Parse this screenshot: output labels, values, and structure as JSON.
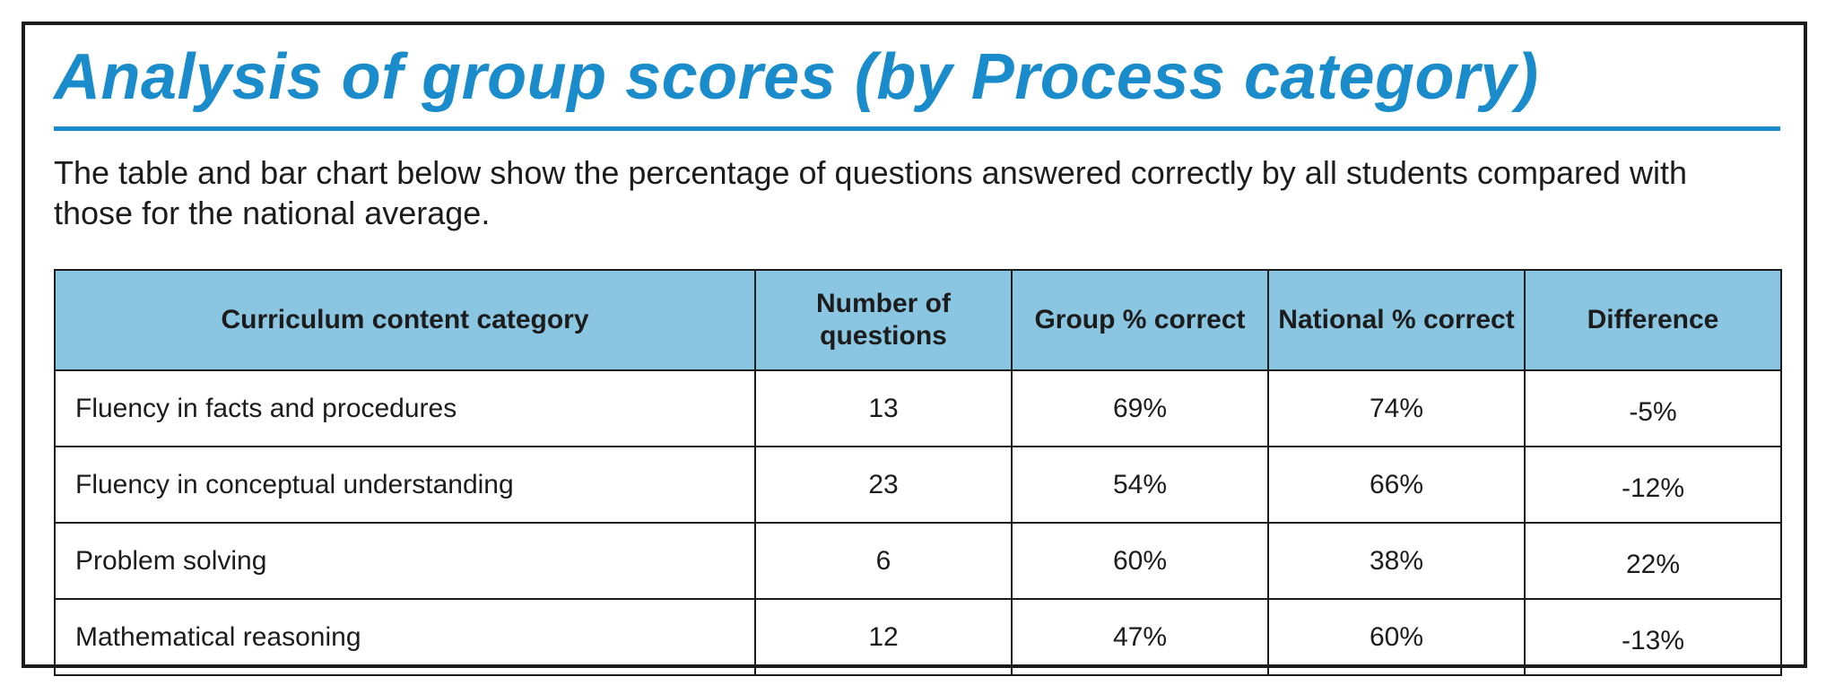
{
  "title": "Analysis of group scores (by Process category)",
  "intro": "The table and bar chart below show the percentage of questions answered correctly by all students compared with those for the national average.",
  "table": {
    "headers": [
      "Curriculum content category",
      "Number of questions",
      "Group % correct",
      "National % correct",
      "Difference"
    ],
    "rows": [
      {
        "category": "Fluency in facts and procedures",
        "questions": "13",
        "group": "69%",
        "national": "74%",
        "difference": "-5%"
      },
      {
        "category": "Fluency in conceptual understanding",
        "questions": "23",
        "group": "54%",
        "national": "66%",
        "difference": "-12%"
      },
      {
        "category": "Problem solving",
        "questions": "6",
        "group": "60%",
        "national": "38%",
        "difference": "22%"
      },
      {
        "category": "Mathematical reasoning",
        "questions": "12",
        "group": "47%",
        "national": "60%",
        "difference": "-13%"
      }
    ]
  },
  "colors": {
    "accent": "#1a8ccc",
    "header_fill": "#8ac6e2",
    "text": "#1c1c1c",
    "border": "#1c1c1c"
  }
}
